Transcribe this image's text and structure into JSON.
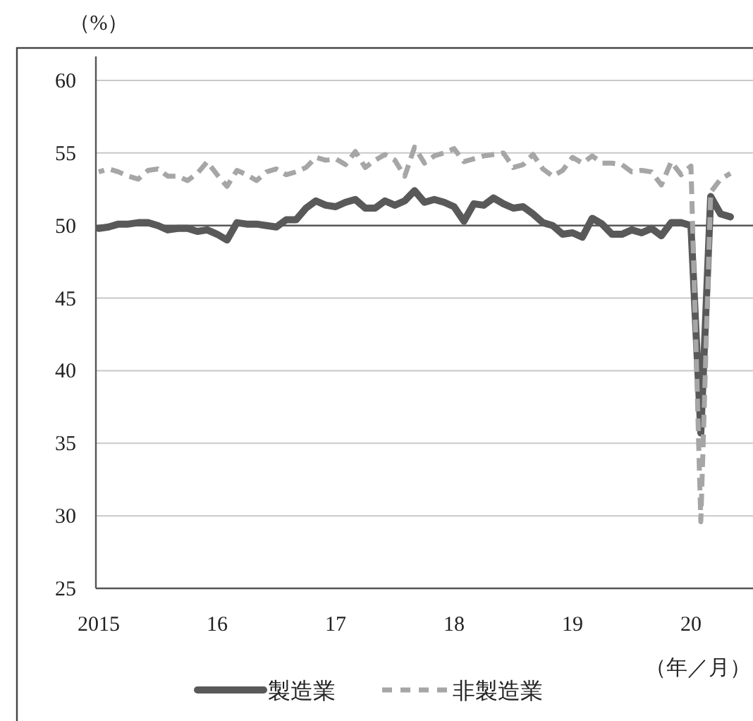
{
  "chart_data": {
    "type": "line",
    "ylabel": "（%）",
    "xlabel": "（年／月）",
    "categories": [
      "2015",
      null,
      null,
      null,
      null,
      null,
      null,
      null,
      null,
      null,
      null,
      null,
      "16",
      null,
      null,
      null,
      null,
      null,
      null,
      null,
      null,
      null,
      null,
      null,
      "17",
      null,
      null,
      null,
      null,
      null,
      null,
      null,
      null,
      null,
      null,
      null,
      "18",
      null,
      null,
      null,
      null,
      null,
      null,
      null,
      null,
      null,
      null,
      null,
      "19",
      null,
      null,
      null,
      null,
      null,
      null,
      null,
      null,
      null,
      null,
      null,
      "20",
      null,
      null,
      null,
      null
    ],
    "series": [
      {
        "name": "製造業",
        "color": "#595959",
        "line_style": "solid",
        "values": [
          49.8,
          49.9,
          50.1,
          50.1,
          50.2,
          50.2,
          50.0,
          49.7,
          49.8,
          49.8,
          49.6,
          49.7,
          49.4,
          49.0,
          50.2,
          50.1,
          50.1,
          50.0,
          49.9,
          50.4,
          50.4,
          51.2,
          51.7,
          51.4,
          51.3,
          51.6,
          51.8,
          51.2,
          51.2,
          51.7,
          51.4,
          51.7,
          52.4,
          51.6,
          51.8,
          51.6,
          51.3,
          50.3,
          51.5,
          51.4,
          51.9,
          51.5,
          51.2,
          51.3,
          50.8,
          50.2,
          50.0,
          49.4,
          49.5,
          49.2,
          50.5,
          50.1,
          49.4,
          49.4,
          49.7,
          49.5,
          49.8,
          49.3,
          50.2,
          50.2,
          50.0,
          35.7,
          52.0,
          50.8,
          50.6
        ]
      },
      {
        "name": "非製造業",
        "color": "#a6a6a6",
        "line_style": "dashed",
        "values": [
          53.7,
          53.9,
          53.7,
          53.4,
          53.2,
          53.8,
          53.9,
          53.4,
          53.4,
          53.1,
          53.6,
          54.4,
          53.5,
          52.7,
          53.8,
          53.5,
          53.1,
          53.7,
          53.9,
          53.5,
          53.7,
          54.0,
          54.7,
          54.5,
          54.6,
          54.2,
          55.1,
          54.0,
          54.5,
          54.9,
          54.5,
          53.4,
          55.4,
          54.3,
          54.8,
          55.0,
          55.3,
          54.4,
          54.6,
          54.8,
          54.9,
          55.0,
          54.0,
          54.2,
          54.9,
          53.9,
          53.4,
          53.8,
          54.7,
          54.3,
          54.8,
          54.3,
          54.3,
          54.2,
          53.7,
          53.8,
          53.7,
          52.8,
          54.4,
          53.5,
          54.1,
          29.6,
          52.3,
          53.2,
          53.6
        ]
      }
    ],
    "ylim": [
      25,
      60
    ],
    "yticks": [
      25,
      30,
      35,
      40,
      45,
      50,
      55,
      60
    ],
    "grid": "y",
    "legend": "bottom",
    "marker": "none",
    "ref_lines": [
      {
        "axis": "y",
        "value": 50,
        "color": "#595959"
      }
    ]
  }
}
